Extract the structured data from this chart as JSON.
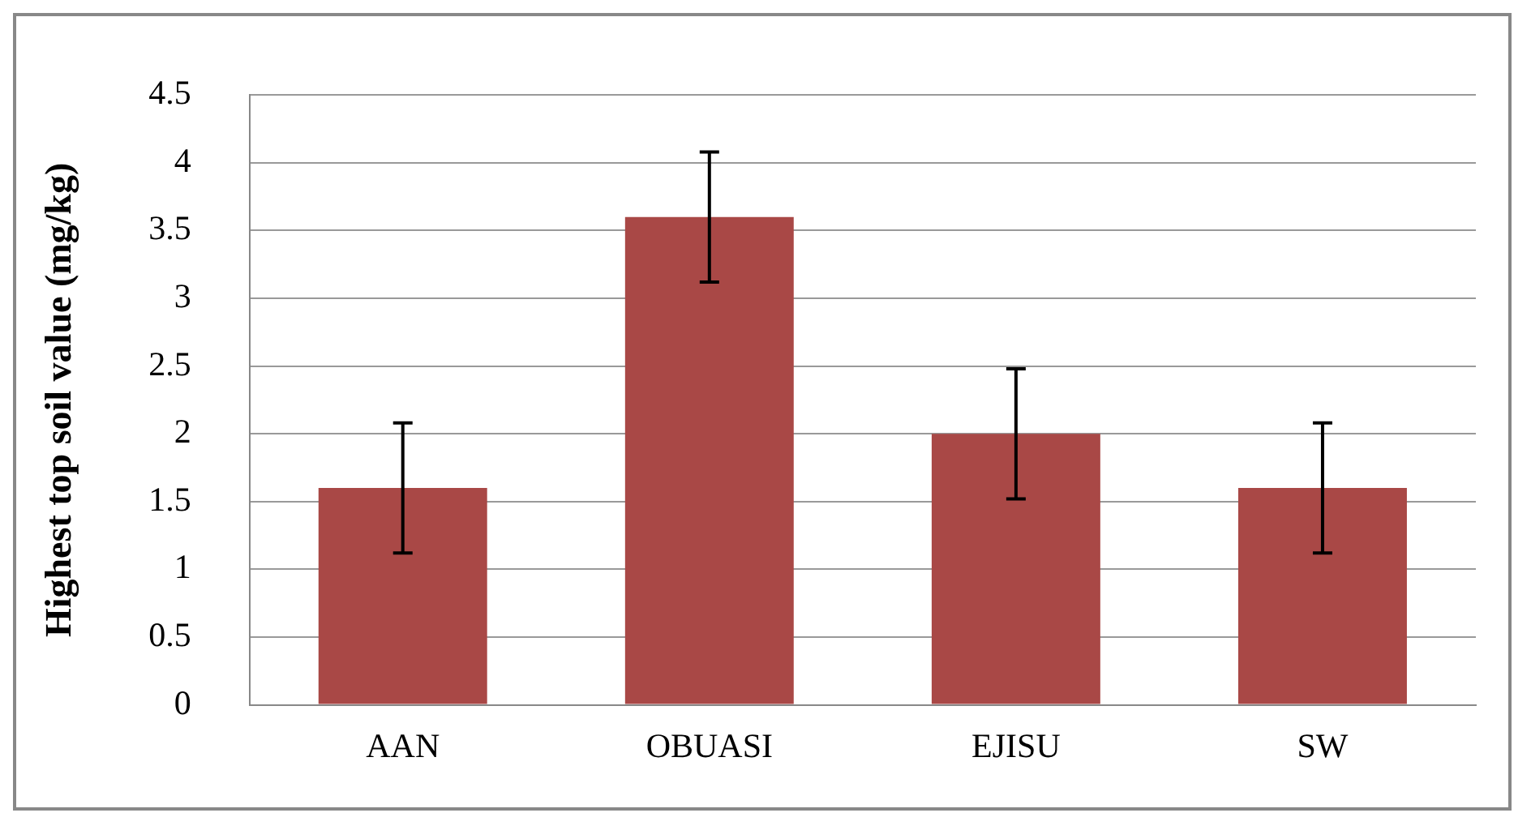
{
  "chart_data": {
    "type": "bar",
    "ylabel": "Highest top soil value (mg/kg)",
    "categories": [
      "AAN",
      "OBUASI",
      "EJISU",
      "SW"
    ],
    "values": [
      1.6,
      3.6,
      2.0,
      1.6
    ],
    "color": "#a94846",
    "errors": [
      0.48,
      0.48,
      0.48,
      0.48
    ],
    "ylim": [
      0,
      4.5
    ],
    "yticks": [
      0,
      0.5,
      1,
      1.5,
      2,
      2.5,
      3,
      3.5,
      4,
      4.5
    ],
    "grid": "y",
    "legend": false
  }
}
